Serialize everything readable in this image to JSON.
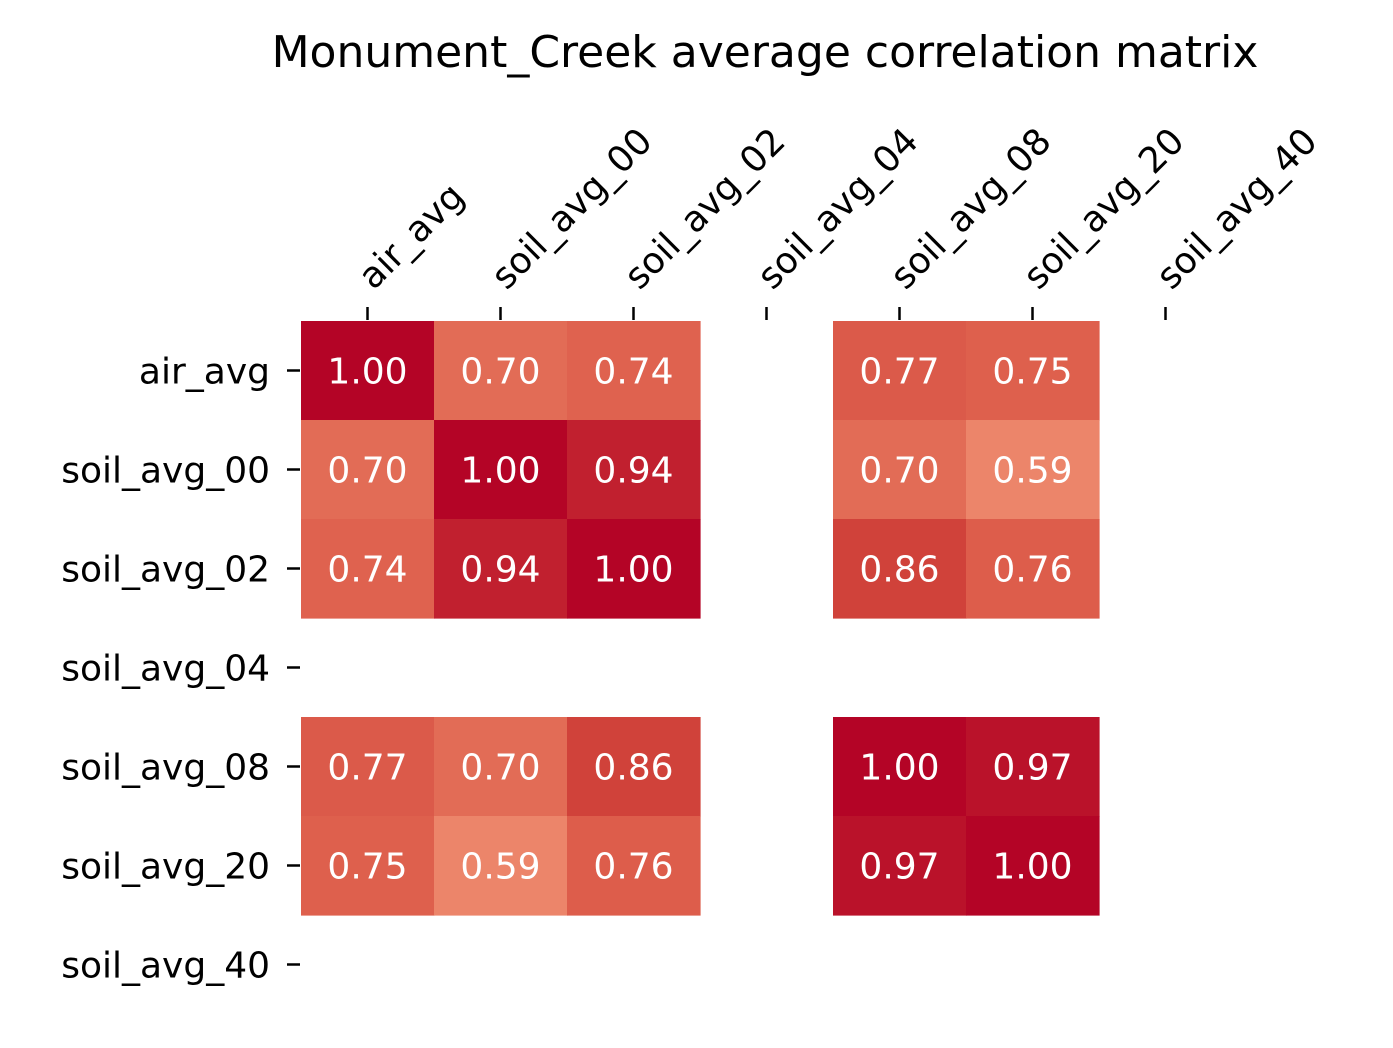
{
  "chart_data": {
    "type": "heatmap",
    "title": "Monument_Creek average correlation matrix",
    "xlabel": "",
    "ylabel": "",
    "x_tick_position": "top",
    "x_tick_rotation_deg": 45,
    "colormap": "coolwarm",
    "value_range": [
      -1,
      1
    ],
    "colorbar": false,
    "labels": [
      "air_avg",
      "soil_avg_00",
      "soil_avg_02",
      "soil_avg_04",
      "soil_avg_08",
      "soil_avg_20",
      "soil_avg_40"
    ],
    "values": [
      [
        1.0,
        0.7,
        0.74,
        null,
        0.77,
        0.75,
        null
      ],
      [
        0.7,
        1.0,
        0.94,
        null,
        0.7,
        0.59,
        null
      ],
      [
        0.74,
        0.94,
        1.0,
        null,
        0.86,
        0.76,
        null
      ],
      [
        null,
        null,
        null,
        null,
        null,
        null,
        null
      ],
      [
        0.77,
        0.7,
        0.86,
        null,
        1.0,
        0.97,
        null
      ],
      [
        0.75,
        0.59,
        0.76,
        null,
        0.97,
        1.0,
        null
      ],
      [
        null,
        null,
        null,
        null,
        null,
        null,
        null
      ]
    ],
    "annotation_format": "0.00",
    "annotation_color": "#ffffff",
    "missing_cells_color": "#ffffff"
  }
}
